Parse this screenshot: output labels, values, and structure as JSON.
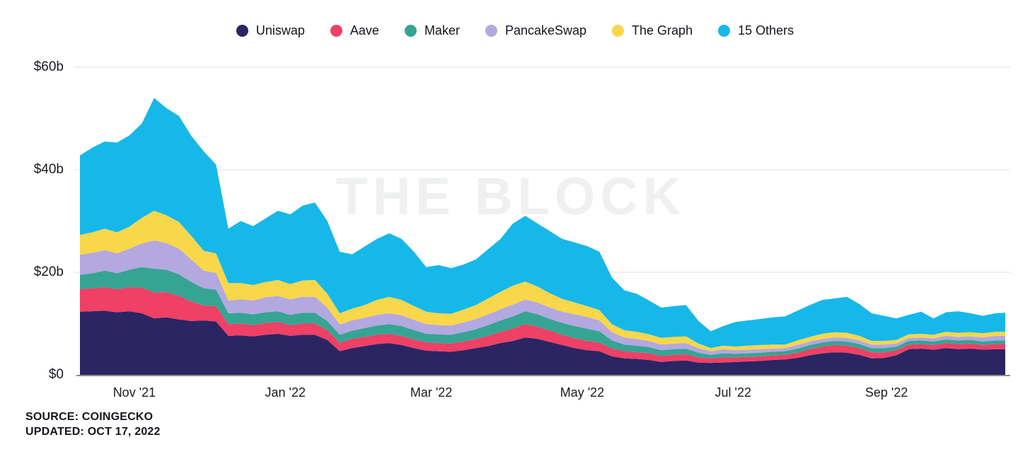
{
  "legend": [
    {
      "label": "Uniswap",
      "color": "#2b2563"
    },
    {
      "label": "Aave",
      "color": "#ef4066"
    },
    {
      "label": "Maker",
      "color": "#36a493"
    },
    {
      "label": "PancakeSwap",
      "color": "#b3a8e0"
    },
    {
      "label": "The Graph",
      "color": "#f8d74b"
    },
    {
      "label": "15 Others",
      "color": "#16b8ea"
    }
  ],
  "watermark": "THE BLOCK",
  "footer": {
    "source": "SOURCE: COINGECKO",
    "updated": "UPDATED: OCT 17, 2022"
  },
  "chart_data": {
    "type": "area",
    "stacked": true,
    "title": "",
    "xlabel": "",
    "ylabel": "",
    "ylim": [
      0,
      60
    ],
    "grid": "horizontal",
    "legend_position": "top-center",
    "axis_colors": {
      "gridline": "#ececec",
      "baseline": "#8b8b83",
      "tick_text": "#1b1b22"
    },
    "ytick_values": [
      0,
      20,
      40,
      60
    ],
    "ytick_labels": [
      "$0",
      "$20b",
      "$40b",
      "$60b"
    ],
    "x_unit": "days since Oct 8 2021 (span ends Oct 17 2022)",
    "xticks": [
      {
        "label": "Nov '21",
        "day": 24
      },
      {
        "label": "Jan '22",
        "day": 85
      },
      {
        "label": "Mar '22",
        "day": 144
      },
      {
        "label": "May '22",
        "day": 205
      },
      {
        "label": "Jul '22",
        "day": 266
      },
      {
        "label": "Sep '22",
        "day": 328
      }
    ],
    "x": [
      0,
      5,
      10,
      15,
      20,
      25,
      30,
      35,
      40,
      45,
      50,
      55,
      60,
      65,
      70,
      75,
      80,
      85,
      90,
      95,
      100,
      105,
      110,
      115,
      120,
      125,
      130,
      135,
      140,
      145,
      150,
      155,
      160,
      165,
      170,
      175,
      180,
      185,
      190,
      195,
      200,
      205,
      210,
      215,
      220,
      225,
      230,
      235,
      240,
      245,
      250,
      255,
      260,
      265,
      270,
      275,
      280,
      285,
      290,
      295,
      300,
      305,
      310,
      315,
      320,
      325,
      330,
      335,
      340,
      345,
      350,
      355,
      360,
      365,
      370,
      374
    ],
    "unit": "USD billions",
    "series": [
      {
        "name": "Uniswap",
        "color": "#2b2563",
        "values": [
          12.3,
          12.4,
          12.5,
          12.2,
          12.4,
          12.0,
          11.0,
          11.2,
          10.8,
          10.5,
          10.6,
          10.4,
          7.6,
          7.7,
          7.5,
          7.8,
          8.0,
          7.6,
          7.8,
          7.8,
          6.8,
          4.6,
          5.2,
          5.6,
          6.0,
          6.2,
          5.8,
          5.2,
          4.7,
          4.6,
          4.5,
          4.8,
          5.2,
          5.6,
          6.2,
          6.6,
          7.3,
          7.0,
          6.4,
          5.8,
          5.2,
          4.8,
          4.6,
          3.6,
          3.2,
          3.1,
          2.9,
          2.5,
          2.7,
          2.8,
          2.4,
          2.3,
          2.4,
          2.5,
          2.6,
          2.7,
          2.9,
          3.0,
          3.3,
          3.8,
          4.2,
          4.4,
          4.3,
          3.9,
          3.2,
          3.3,
          3.8,
          5.0,
          5.1,
          4.9,
          5.2,
          5.0,
          5.1,
          4.9,
          5.0,
          5.0
        ]
      },
      {
        "name": "Aave",
        "color": "#ef4066",
        "values": [
          4.4,
          4.5,
          4.6,
          4.5,
          4.7,
          5.0,
          5.1,
          4.9,
          4.6,
          3.8,
          2.9,
          3.0,
          2.3,
          2.3,
          2.2,
          2.3,
          2.3,
          2.1,
          2.2,
          2.2,
          1.9,
          1.7,
          1.8,
          1.8,
          1.8,
          1.8,
          1.8,
          1.7,
          1.6,
          1.6,
          1.6,
          1.7,
          1.8,
          2.0,
          2.2,
          2.4,
          2.6,
          2.4,
          2.2,
          2.0,
          1.9,
          1.8,
          1.7,
          1.5,
          1.4,
          1.3,
          1.3,
          1.2,
          1.2,
          1.2,
          1.0,
          0.9,
          1.0,
          0.9,
          0.9,
          0.9,
          0.9,
          0.9,
          1.0,
          1.2,
          1.3,
          1.4,
          1.4,
          1.3,
          1.2,
          1.1,
          1.0,
          0.9,
          0.9,
          0.9,
          1.0,
          1.0,
          1.0,
          0.9,
          1.0,
          1.0
        ]
      },
      {
        "name": "Maker",
        "color": "#36a493",
        "values": [
          2.8,
          2.9,
          3.2,
          3.1,
          3.4,
          4.0,
          4.6,
          4.4,
          4.2,
          3.8,
          3.4,
          3.2,
          2.1,
          2.1,
          2.1,
          2.1,
          2.1,
          2.0,
          2.1,
          2.1,
          1.8,
          1.5,
          1.6,
          1.7,
          1.8,
          1.9,
          1.9,
          1.8,
          1.7,
          1.7,
          1.7,
          1.8,
          1.9,
          2.1,
          2.2,
          2.4,
          2.5,
          2.4,
          2.3,
          2.3,
          2.4,
          2.4,
          2.2,
          1.6,
          1.3,
          1.3,
          1.2,
          1.1,
          1.1,
          1.1,
          0.9,
          0.7,
          0.8,
          0.7,
          0.7,
          0.7,
          0.7,
          0.7,
          0.8,
          0.8,
          0.8,
          0.8,
          0.8,
          0.8,
          0.8,
          0.8,
          0.7,
          0.7,
          0.7,
          0.7,
          0.7,
          0.7,
          0.7,
          0.7,
          0.7,
          0.7
        ]
      },
      {
        "name": "PancakeSwap",
        "color": "#b3a8e0",
        "values": [
          3.9,
          4.0,
          4.0,
          3.9,
          4.1,
          4.6,
          5.5,
          5.2,
          5.0,
          4.4,
          3.4,
          3.3,
          2.5,
          2.6,
          2.7,
          2.9,
          3.0,
          3.0,
          3.1,
          3.1,
          2.6,
          2.0,
          2.0,
          2.0,
          2.1,
          2.1,
          2.1,
          2.0,
          1.9,
          1.8,
          1.8,
          1.9,
          2.0,
          2.1,
          2.2,
          2.3,
          2.3,
          2.3,
          2.2,
          2.2,
          2.3,
          2.3,
          2.1,
          1.6,
          1.4,
          1.3,
          1.2,
          1.1,
          1.1,
          1.1,
          0.9,
          0.7,
          0.8,
          0.7,
          0.7,
          0.7,
          0.6,
          0.6,
          0.7,
          0.7,
          0.7,
          0.7,
          0.7,
          0.7,
          0.7,
          0.7,
          0.6,
          0.6,
          0.6,
          0.6,
          0.7,
          0.7,
          0.7,
          0.8,
          0.9,
          0.9
        ]
      },
      {
        "name": "The Graph",
        "color": "#f8d74b",
        "values": [
          3.9,
          4.0,
          4.2,
          4.1,
          4.3,
          5.0,
          5.8,
          5.4,
          5.2,
          4.6,
          3.9,
          3.8,
          3.4,
          3.2,
          3.0,
          3.0,
          3.1,
          3.0,
          3.2,
          3.3,
          2.7,
          2.2,
          2.3,
          2.5,
          2.9,
          3.2,
          3.0,
          2.7,
          2.4,
          2.3,
          2.3,
          2.5,
          2.7,
          3.1,
          3.4,
          3.7,
          3.5,
          3.1,
          2.8,
          2.5,
          2.3,
          2.1,
          2.0,
          1.6,
          1.4,
          1.4,
          1.3,
          1.3,
          1.3,
          1.3,
          0.9,
          0.6,
          0.7,
          0.7,
          0.8,
          0.8,
          0.8,
          0.7,
          0.9,
          0.9,
          1.0,
          1.0,
          1.0,
          0.9,
          0.7,
          0.7,
          0.7,
          0.7,
          0.7,
          0.7,
          0.8,
          0.8,
          0.8,
          0.8,
          0.8,
          0.8
        ]
      },
      {
        "name": "15 Others",
        "color": "#16b8ea",
        "values": [
          15.5,
          16.5,
          17.0,
          17.5,
          17.8,
          18.4,
          22.0,
          20.9,
          20.7,
          19.5,
          19.4,
          17.3,
          10.6,
          12.1,
          11.5,
          12.4,
          13.5,
          13.6,
          14.6,
          15.1,
          14.2,
          12.0,
          10.6,
          11.4,
          11.9,
          12.4,
          11.9,
          10.6,
          8.7,
          9.4,
          8.9,
          8.8,
          8.9,
          9.6,
          10.3,
          12.1,
          12.8,
          12.3,
          12.1,
          11.7,
          11.7,
          11.7,
          11.4,
          9.1,
          7.8,
          7.4,
          6.6,
          5.9,
          6.0,
          6.1,
          4.4,
          3.3,
          3.8,
          4.8,
          4.9,
          5.1,
          5.3,
          5.5,
          5.8,
          6.2,
          6.6,
          6.6,
          7.0,
          6.2,
          5.4,
          4.9,
          4.2,
          3.8,
          4.3,
          3.2,
          3.8,
          4.2,
          3.7,
          3.4,
          3.6,
          3.7
        ]
      }
    ]
  }
}
